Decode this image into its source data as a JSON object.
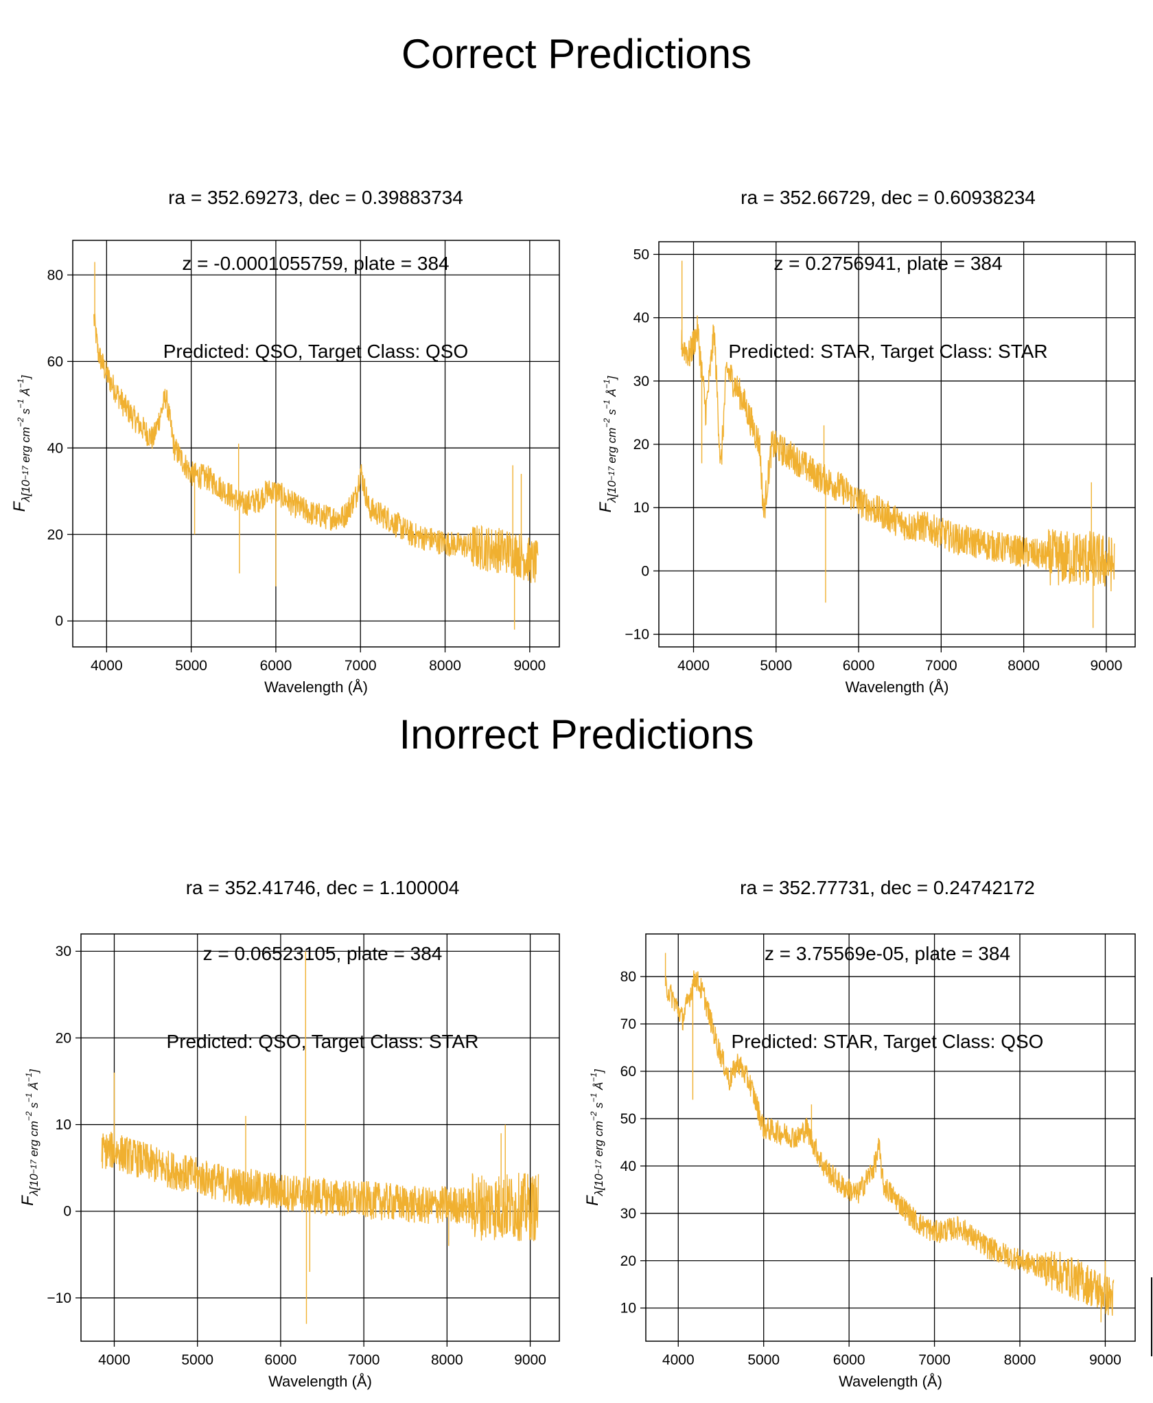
{
  "titles": {
    "top": "Correct Predictions",
    "bottom": "Inorrect Predictions"
  },
  "panels": [
    {
      "line1": "ra = 352.69273, dec = 0.39883734",
      "line2": "z = -0.0001055759, plate = 384",
      "line3": "Predicted: QSO, Target Class: QSO"
    },
    {
      "line1": "ra = 352.66729, dec = 0.60938234",
      "line2": "z = 0.2756941, plate = 384",
      "line3": "Predicted: STAR, Target Class: STAR"
    },
    {
      "line1": "ra = 352.41746, dec = 1.100004",
      "line2": "z = 0.06523105, plate = 384",
      "line3": "Predicted: QSO, Target Class: STAR"
    },
    {
      "line1": "ra = 352.77731, dec = 0.24742172",
      "line2": "z = 3.75569e-05, plate = 384",
      "line3": "Predicted: STAR, Target Class: QSO"
    }
  ],
  "chart_data": [
    {
      "type": "line",
      "xlabel": "Wavelength (Å)",
      "ylabel": "F_λ[10^-17 erg cm^-2 s^-1 Å^-1]",
      "color": "#f0b030",
      "xlim": [
        3600,
        9350
      ],
      "ylim": [
        -6,
        88
      ],
      "xticks": [
        4000,
        5000,
        6000,
        7000,
        8000,
        9000
      ],
      "yticks": [
        0,
        20,
        40,
        60,
        80
      ],
      "grid": true,
      "noise": 3.0,
      "series": [
        {
          "x": [
            3850,
            3900,
            4000,
            4200,
            4400,
            4550,
            4700,
            4800,
            5000,
            5200,
            5400,
            5600,
            5800,
            5900,
            6000,
            6200,
            6400,
            6600,
            6800,
            6950,
            7000,
            7100,
            7300,
            7600,
            8000,
            8400,
            8800,
            9100
          ],
          "values": [
            70,
            62,
            57,
            50,
            45,
            42,
            52,
            40,
            34,
            33,
            30,
            27,
            28,
            30,
            30,
            27,
            25,
            24,
            24,
            29,
            35,
            26,
            24,
            20,
            18,
            17,
            16,
            13
          ]
        }
      ],
      "spikes": [
        {
          "x": 3860,
          "y": 83
        },
        {
          "x": 5040,
          "y": 20
        },
        {
          "x": 5560,
          "y": 41
        },
        {
          "x": 5570,
          "y": 11
        },
        {
          "x": 6000,
          "y": 8
        },
        {
          "x": 8800,
          "y": 36
        },
        {
          "x": 8820,
          "y": -2
        },
        {
          "x": 8900,
          "y": 34
        }
      ]
    },
    {
      "type": "line",
      "xlabel": "Wavelength (Å)",
      "ylabel": "F_λ[10^-17 erg cm^-2 s^-1 Å^-1]",
      "color": "#f0b030",
      "xlim": [
        3580,
        9350
      ],
      "ylim": [
        -12,
        52
      ],
      "xticks": [
        4000,
        5000,
        6000,
        7000,
        8000,
        9000
      ],
      "yticks": [
        -10,
        0,
        10,
        20,
        30,
        40,
        50
      ],
      "grid": true,
      "noise": 2.5,
      "series": [
        {
          "x": [
            3850,
            3950,
            4050,
            4150,
            4250,
            4330,
            4400,
            4600,
            4800,
            4850,
            4950,
            5200,
            5500,
            5800,
            6000,
            6300,
            6600,
            6800,
            7200,
            7600,
            8000,
            8400,
            8800,
            9100
          ],
          "values": [
            36,
            34,
            38,
            25,
            38,
            16,
            32,
            27,
            20,
            9,
            20,
            18,
            15,
            13,
            11,
            9,
            7,
            7,
            5,
            4,
            3,
            2,
            2,
            1
          ]
        }
      ],
      "spikes": [
        {
          "x": 3860,
          "y": 49
        },
        {
          "x": 4100,
          "y": 17
        },
        {
          "x": 5580,
          "y": 23
        },
        {
          "x": 5600,
          "y": -5
        },
        {
          "x": 8820,
          "y": 14
        },
        {
          "x": 8840,
          "y": -9
        }
      ]
    },
    {
      "type": "line",
      "xlabel": "Wavelength (Å)",
      "ylabel": "F_λ[10^-17 erg cm^-2 s^-1 Å^-1]",
      "color": "#f0b030",
      "xlim": [
        3600,
        9350
      ],
      "ylim": [
        -15,
        32
      ],
      "xticks": [
        4000,
        5000,
        6000,
        7000,
        8000,
        9000
      ],
      "yticks": [
        -10,
        0,
        10,
        20,
        30
      ],
      "grid": true,
      "noise": 2.2,
      "series": [
        {
          "x": [
            3850,
            4000,
            4300,
            4600,
            5000,
            5400,
            5800,
            6200,
            6600,
            7000,
            7400,
            7740,
            8000,
            8300,
            8600,
            8900,
            9100
          ],
          "values": [
            7,
            7,
            6,
            5,
            4,
            3,
            2.5,
            2,
            1.6,
            1.3,
            1,
            0.6,
            0.8,
            0.6,
            0.5,
            0.5,
            0.4
          ]
        }
      ],
      "spikes": [
        {
          "x": 4000,
          "y": 16
        },
        {
          "x": 5580,
          "y": 11
        },
        {
          "x": 6300,
          "y": 30
        },
        {
          "x": 6310,
          "y": -13
        },
        {
          "x": 6350,
          "y": -7
        },
        {
          "x": 8020,
          "y": -4
        },
        {
          "x": 8650,
          "y": 9
        },
        {
          "x": 8700,
          "y": 10
        }
      ]
    },
    {
      "type": "line",
      "xlabel": "Wavelength (Å)",
      "ylabel": "F_λ[10^-17 erg cm^-2 s^-1 Å^-1]",
      "color": "#f0b030",
      "xlim": [
        3620,
        9350
      ],
      "ylim": [
        3,
        89
      ],
      "xticks": [
        4000,
        5000,
        6000,
        7000,
        8000,
        9000
      ],
      "yticks": [
        10,
        20,
        30,
        40,
        50,
        60,
        70,
        80
      ],
      "grid": true,
      "noise": 2.5,
      "series": [
        {
          "x": [
            3850,
            3950,
            4050,
            4200,
            4300,
            4450,
            4600,
            4700,
            4850,
            5000,
            5200,
            5400,
            5500,
            5700,
            5900,
            6100,
            6300,
            6350,
            6400,
            6600,
            6800,
            7000,
            7300,
            7600,
            8000,
            8400,
            8800,
            9100
          ],
          "values": [
            78,
            75,
            71,
            80,
            76,
            66,
            58,
            62,
            57,
            48,
            47,
            46,
            48,
            40,
            36,
            34,
            40,
            44,
            36,
            32,
            28,
            26,
            27,
            23,
            20,
            18,
            15,
            12
          ]
        }
      ],
      "spikes": [
        {
          "x": 3850,
          "y": 85
        },
        {
          "x": 4170,
          "y": 54
        },
        {
          "x": 5560,
          "y": 53
        },
        {
          "x": 8950,
          "y": 7
        },
        {
          "x": 9000,
          "y": 20
        }
      ]
    }
  ]
}
